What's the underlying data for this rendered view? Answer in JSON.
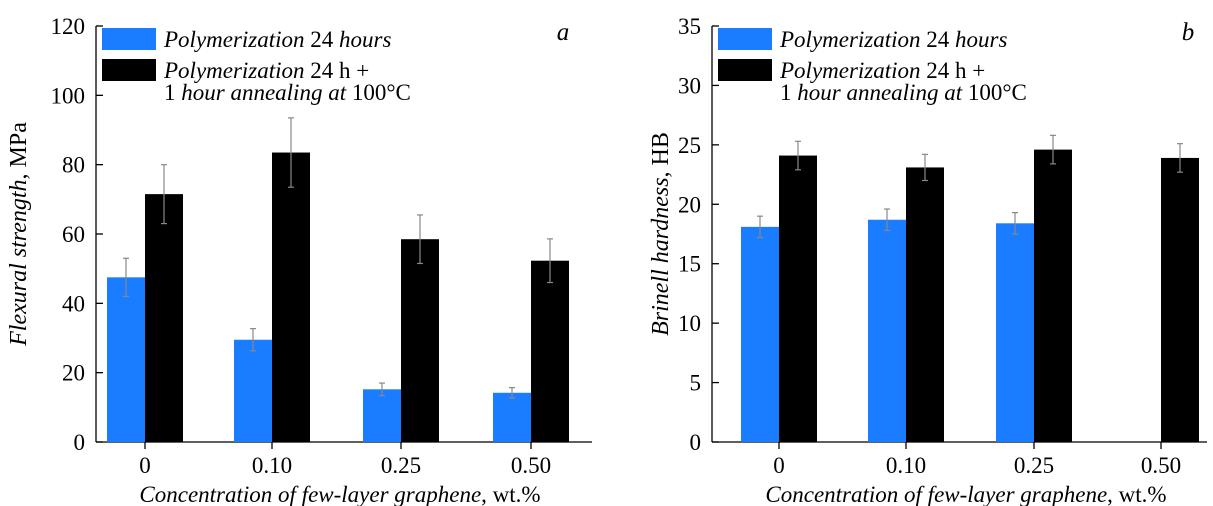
{
  "colors": {
    "series_a": "#1a7cff",
    "series_b": "#000000",
    "axis": "#000000",
    "error_bar": "#888888"
  },
  "chart_data": [
    {
      "type": "bar",
      "panel_label": "a",
      "categories": [
        "0",
        "0.10",
        "0.25",
        "0.50"
      ],
      "series": [
        {
          "name": "Polymerization 24 hours",
          "name_parts": [
            {
              "text": "Polymerization",
              "italic": true
            },
            {
              "text": " 24 ",
              "italic": false
            },
            {
              "text": "hours",
              "italic": true
            }
          ],
          "values": [
            47.5,
            29.5,
            15.2,
            14.2
          ],
          "errors": [
            5.5,
            3.2,
            1.8,
            1.5
          ]
        },
        {
          "name": "Polymerization 24 h + 1 hour annealing at 100°C",
          "name_parts": [
            {
              "text": "Polymerization",
              "italic": true
            },
            {
              "text": " 24 h +",
              "italic": false
            }
          ],
          "name_parts_line2": [
            {
              "text": "1 ",
              "italic": false
            },
            {
              "text": "hour annealing at",
              "italic": true
            },
            {
              "text": " 100°C",
              "italic": false
            }
          ],
          "values": [
            71.5,
            83.5,
            58.5,
            52.3
          ],
          "errors": [
            8.5,
            10.0,
            7.0,
            6.3
          ]
        }
      ],
      "ylabel_parts": [
        {
          "text": "Flexural strength",
          "italic": true
        },
        {
          "text": ", MPa",
          "italic": false
        }
      ],
      "xlabel_parts": [
        {
          "text": "Concentration of few-layer graphene",
          "italic": true
        },
        {
          "text": ", wt.%",
          "italic": false
        }
      ],
      "ylim": [
        0,
        120
      ],
      "yticks": [
        0,
        20,
        40,
        60,
        80,
        100,
        120
      ],
      "ytick_labels": [
        "0",
        "20",
        "40",
        "60",
        "80",
        "100",
        "120"
      ],
      "legend_position": "top-left",
      "grid": false
    },
    {
      "type": "bar",
      "panel_label": "b",
      "categories": [
        "0",
        "0.10",
        "0.25",
        "0.50"
      ],
      "series": [
        {
          "name": "Polymerization 24 hours",
          "name_parts": [
            {
              "text": "Polymerization",
              "italic": true
            },
            {
              "text": " 24 ",
              "italic": false
            },
            {
              "text": "hours",
              "italic": true
            }
          ],
          "values": [
            18.1,
            18.7,
            18.4,
            null
          ],
          "errors": [
            0.9,
            0.9,
            0.9,
            null
          ]
        },
        {
          "name": "Polymerization 24 h + 1 hour annealing at 100°C",
          "name_parts": [
            {
              "text": "Polymerization",
              "italic": true
            },
            {
              "text": " 24 h +",
              "italic": false
            }
          ],
          "name_parts_line2": [
            {
              "text": "1 ",
              "italic": false
            },
            {
              "text": "hour annealing at",
              "italic": true
            },
            {
              "text": " 100°C",
              "italic": false
            }
          ],
          "values": [
            24.1,
            23.1,
            24.6,
            23.9
          ],
          "errors": [
            1.2,
            1.1,
            1.2,
            1.2
          ]
        }
      ],
      "ylabel_parts": [
        {
          "text": "Brinell hardness",
          "italic": true
        },
        {
          "text": ", HB",
          "italic": false
        }
      ],
      "xlabel_parts": [
        {
          "text": "Concentration of few-layer graphene",
          "italic": true
        },
        {
          "text": ", wt.%",
          "italic": false
        }
      ],
      "ylim": [
        0,
        35
      ],
      "yticks": [
        0,
        5,
        10,
        15,
        20,
        25,
        30,
        35
      ],
      "ytick_labels": [
        "0",
        "5",
        "10",
        "15",
        "20",
        "25",
        "30",
        "35"
      ],
      "legend_position": "top-left",
      "grid": false
    }
  ]
}
